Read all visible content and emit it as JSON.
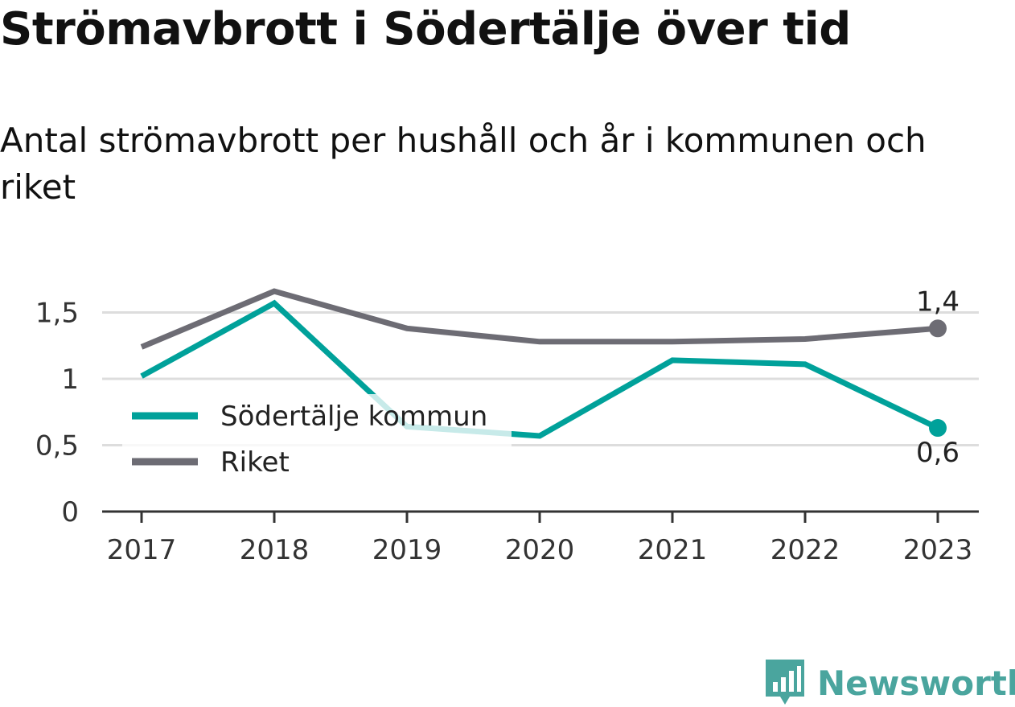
{
  "title": "Strömavbrott i Södertälje över tid",
  "subtitle": "Antal strömavbrott per hushåll och år i kommunen och riket",
  "brand": "Newsworthy",
  "colors": {
    "sodertalje": "#00a19a",
    "riket": "#6d6c74",
    "grid": "#dddddd",
    "axis": "#333333"
  },
  "chart_data": {
    "type": "line",
    "x": [
      "2017",
      "2018",
      "2019",
      "2020",
      "2021",
      "2022",
      "2023"
    ],
    "series": [
      {
        "name": "Södertälje kommun",
        "values": [
          1.02,
          1.57,
          0.64,
          0.57,
          1.14,
          1.11,
          0.63
        ]
      },
      {
        "name": "Riket",
        "values": [
          1.24,
          1.66,
          1.38,
          1.28,
          1.28,
          1.3,
          1.38
        ]
      }
    ],
    "yticks": [
      "0",
      "0,5",
      "1",
      "1,5"
    ],
    "ylim": [
      0,
      1.65
    ],
    "grid": true,
    "legend_position": "left-center",
    "end_labels": {
      "Riket": "1,4",
      "Södertälje kommun": "0,6"
    }
  }
}
